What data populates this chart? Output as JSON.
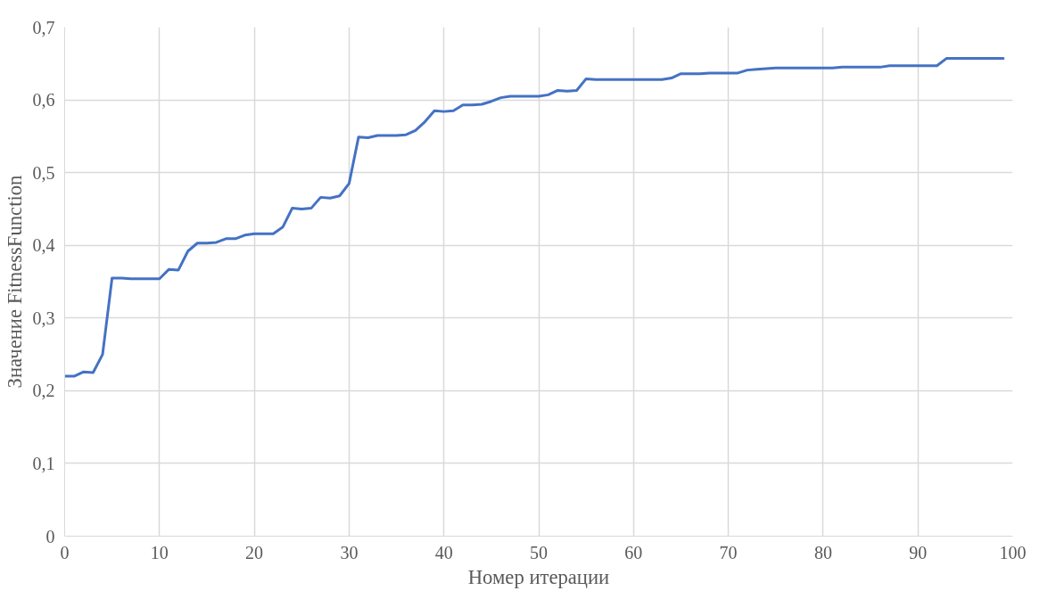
{
  "chart_data": {
    "type": "line",
    "xlabel": "Номер итерации",
    "ylabel": "Значение FitnessFunction",
    "x": [
      0,
      1,
      2,
      3,
      4,
      5,
      6,
      7,
      8,
      9,
      10,
      11,
      12,
      13,
      14,
      15,
      16,
      17,
      18,
      19,
      20,
      21,
      22,
      23,
      24,
      25,
      26,
      27,
      28,
      29,
      30,
      31,
      32,
      33,
      34,
      35,
      36,
      37,
      38,
      39,
      40,
      41,
      42,
      43,
      44,
      45,
      46,
      47,
      48,
      49,
      50,
      51,
      52,
      53,
      54,
      55,
      56,
      57,
      58,
      59,
      60,
      61,
      62,
      63,
      64,
      65,
      66,
      67,
      68,
      69,
      70,
      71,
      72,
      73,
      74,
      75,
      76,
      77,
      78,
      79,
      80,
      81,
      82,
      83,
      84,
      85,
      86,
      87,
      88,
      89,
      90,
      91,
      92,
      93,
      94,
      95,
      96,
      97,
      98,
      99
    ],
    "series": [
      {
        "color": "#4472c4",
        "values": [
          0.22,
          0.22,
          0.226,
          0.225,
          0.25,
          0.355,
          0.355,
          0.354,
          0.354,
          0.354,
          0.354,
          0.367,
          0.366,
          0.392,
          0.403,
          0.403,
          0.404,
          0.409,
          0.409,
          0.414,
          0.416,
          0.416,
          0.416,
          0.425,
          0.451,
          0.45,
          0.451,
          0.466,
          0.465,
          0.468,
          0.485,
          0.549,
          0.548,
          0.551,
          0.551,
          0.551,
          0.552,
          0.558,
          0.57,
          0.585,
          0.584,
          0.585,
          0.593,
          0.593,
          0.594,
          0.598,
          0.603,
          0.605,
          0.605,
          0.605,
          0.605,
          0.607,
          0.613,
          0.612,
          0.613,
          0.629,
          0.628,
          0.628,
          0.628,
          0.628,
          0.628,
          0.628,
          0.628,
          0.628,
          0.63,
          0.636,
          0.636,
          0.636,
          0.637,
          0.637,
          0.637,
          0.637,
          0.641,
          0.642,
          0.643,
          0.644,
          0.644,
          0.644,
          0.644,
          0.644,
          0.644,
          0.644,
          0.645,
          0.645,
          0.645,
          0.645,
          0.645,
          0.647,
          0.647,
          0.647,
          0.647,
          0.647,
          0.647,
          0.657,
          0.657,
          0.657,
          0.657,
          0.657,
          0.657,
          0.657
        ]
      }
    ],
    "xlim": [
      0,
      100
    ],
    "xticks": [
      0,
      10,
      20,
      30,
      40,
      50,
      60,
      70,
      80,
      90,
      100
    ],
    "ylim": [
      0,
      0.7
    ],
    "yticks": [
      0,
      {
        "value": 0.1,
        "label": "0,1"
      },
      {
        "value": 0.2,
        "label": "0,2"
      },
      {
        "value": 0.3,
        "label": "0,3"
      },
      {
        "value": 0.4,
        "label": "0,4"
      },
      {
        "value": 0.5,
        "label": "0,5"
      },
      {
        "value": 0.6,
        "label": "0,6"
      },
      {
        "value": 0.7,
        "label": "0,7"
      }
    ],
    "grid": true,
    "marker": "none",
    "line_style": "solid"
  }
}
